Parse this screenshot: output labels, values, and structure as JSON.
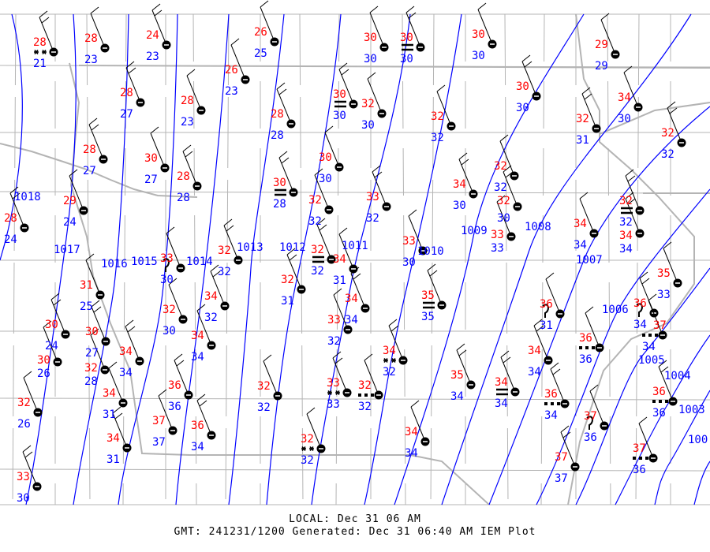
{
  "footer": {
    "local": "LOCAL: Dec 31 06 AM",
    "gmt": "GMT: 241231/1200 Generated: Dec 31 06:40 AM IEM Plot"
  },
  "colors": {
    "temperature": "#ff0000",
    "dewpoint": "#0000ff",
    "isobar": "#0000ff",
    "borders": "#b4b4b4",
    "station": "#000000"
  },
  "isobars": [
    "1018",
    "1017",
    "1016",
    "1015",
    "1014",
    "1013",
    "1012",
    "1011",
    "1010",
    "1009",
    "1008",
    "1007",
    "1006",
    "1005",
    "1004",
    "1003",
    "100"
  ],
  "stations": [
    {
      "t": "28",
      "d": "21",
      "wx": "snow"
    },
    {
      "t": "28",
      "d": "23",
      "wx": ""
    },
    {
      "t": "24",
      "d": "23",
      "wx": ""
    },
    {
      "t": "26",
      "d": "23",
      "wx": ""
    },
    {
      "t": "28",
      "d": "27",
      "wx": ""
    },
    {
      "t": "28",
      "d": "23",
      "wx": ""
    },
    {
      "t": "28",
      "d": "27",
      "wx": ""
    },
    {
      "t": "30",
      "d": "27",
      "wx": ""
    },
    {
      "t": "28",
      "d": "28",
      "wx": ""
    },
    {
      "t": "29",
      "d": "24",
      "wx": ""
    },
    {
      "t": "28",
      "d": "24",
      "wx": ""
    },
    {
      "t": "26",
      "d": "25",
      "wx": ""
    },
    {
      "t": "28",
      "d": "28",
      "wx": ""
    },
    {
      "t": "30",
      "d": "30",
      "wx": ""
    },
    {
      "t": "30",
      "d": "30",
      "wx": "fog"
    },
    {
      "t": "30",
      "d": "30",
      "wx": ""
    },
    {
      "t": "30",
      "d": "30",
      "wx": "fog"
    },
    {
      "t": "32",
      "d": "30",
      "wx": ""
    },
    {
      "t": "30",
      "d": "30",
      "wx": ""
    },
    {
      "t": "29",
      "d": "29",
      "wx": ""
    },
    {
      "t": "32",
      "d": "31",
      "wx": ""
    },
    {
      "t": "34",
      "d": "30",
      "wx": ""
    },
    {
      "t": "32",
      "d": "32",
      "wx": ""
    },
    {
      "t": "30",
      "d": "30",
      "wx": ""
    },
    {
      "t": "30",
      "d": "28",
      "wx": "fog"
    },
    {
      "t": "32",
      "d": "32",
      "wx": ""
    },
    {
      "t": "33",
      "d": "32",
      "wx": ""
    },
    {
      "t": "32",
      "d": "32",
      "wx": ""
    },
    {
      "t": "34",
      "d": "30",
      "wx": ""
    },
    {
      "t": "32",
      "d": "32",
      "wx": ""
    },
    {
      "t": "32",
      "d": "30",
      "wx": ""
    },
    {
      "t": "33",
      "d": "33",
      "wx": ""
    },
    {
      "t": "32",
      "d": "32",
      "wx": "fog"
    },
    {
      "t": "34",
      "d": "34",
      "wx": ""
    },
    {
      "t": "32",
      "d": "32",
      "wx": ""
    },
    {
      "t": "33",
      "d": "30",
      "wx": "drizzle"
    },
    {
      "t": "32",
      "d": "32",
      "wx": "fog"
    },
    {
      "t": "34",
      "d": "31",
      "wx": ""
    },
    {
      "t": "32",
      "d": "31",
      "wx": ""
    },
    {
      "t": "33",
      "d": "30",
      "wx": ""
    },
    {
      "t": "34",
      "d": "34",
      "wx": ""
    },
    {
      "t": "33",
      "d": "32",
      "wx": ""
    },
    {
      "t": "35",
      "d": "35",
      "wx": "fog"
    },
    {
      "t": "31",
      "d": "25",
      "wx": ""
    },
    {
      "t": "30",
      "d": "24",
      "wx": ""
    },
    {
      "t": "30",
      "d": "26",
      "wx": ""
    },
    {
      "t": "30",
      "d": "27",
      "wx": ""
    },
    {
      "t": "32",
      "d": "28",
      "wx": ""
    },
    {
      "t": "34",
      "d": "34",
      "wx": ""
    },
    {
      "t": "34",
      "d": "31",
      "wx": ""
    },
    {
      "t": "34",
      "d": "31",
      "wx": ""
    },
    {
      "t": "32",
      "d": "26",
      "wx": ""
    },
    {
      "t": "33",
      "d": "30",
      "wx": ""
    },
    {
      "t": "32",
      "d": "30",
      "wx": ""
    },
    {
      "t": "34",
      "d": "32",
      "wx": ""
    },
    {
      "t": "34",
      "d": "34",
      "wx": ""
    },
    {
      "t": "36",
      "d": "36",
      "wx": ""
    },
    {
      "t": "37",
      "d": "37",
      "wx": ""
    },
    {
      "t": "36",
      "d": "34",
      "wx": ""
    },
    {
      "t": "32",
      "d": "32",
      "wx": ""
    },
    {
      "t": "33",
      "d": "33",
      "wx": "snow"
    },
    {
      "t": "32",
      "d": "32",
      "wx": "rain"
    },
    {
      "t": "34",
      "d": "32",
      "wx": "snow"
    },
    {
      "t": "32",
      "d": "32",
      "wx": "snow"
    },
    {
      "t": "35",
      "d": "34",
      "wx": ""
    },
    {
      "t": "34",
      "d": "34",
      "wx": ""
    },
    {
      "t": "34",
      "d": "34",
      "wx": "fog"
    },
    {
      "t": "36",
      "d": "31",
      "wx": "drizzle"
    },
    {
      "t": "34",
      "d": "34",
      "wx": ""
    },
    {
      "t": "36",
      "d": "36",
      "wx": "rain"
    },
    {
      "t": "36",
      "d": "34",
      "wx": "rain"
    },
    {
      "t": "37",
      "d": "36",
      "wx": "drizzle"
    },
    {
      "t": "37",
      "d": "37",
      "wx": ""
    },
    {
      "t": "37",
      "d": "36",
      "wx": "rain"
    },
    {
      "t": "36",
      "d": "36",
      "wx": "rain"
    },
    {
      "t": "35",
      "d": "33",
      "wx": ""
    },
    {
      "t": "36",
      "d": "34",
      "wx": "drizzle"
    },
    {
      "t": "37",
      "d": "34",
      "wx": "rain"
    },
    {
      "t": "34",
      "d": "34",
      "wx": ""
    }
  ]
}
